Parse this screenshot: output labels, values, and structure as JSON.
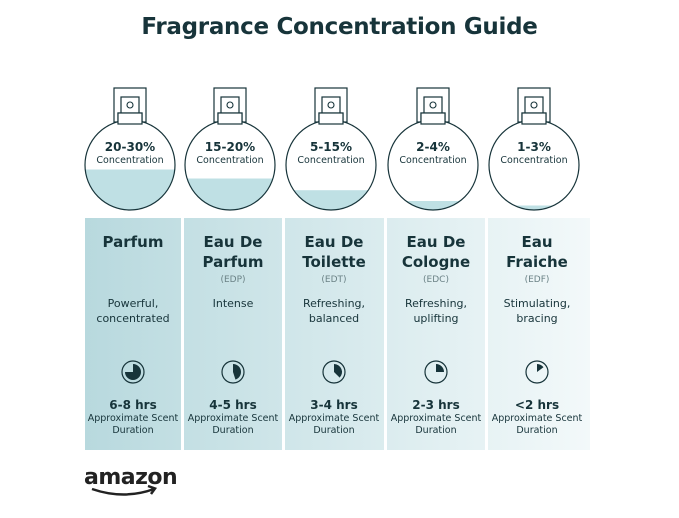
{
  "title": "Fragrance Concentration Guide",
  "colors": {
    "text": "#17343a",
    "liquid": "#bfe0e4",
    "panel_left": "#b8d9de",
    "panel_right": "#f3f9fa"
  },
  "concentration_label": "Concentration",
  "duration_label": "Approximate Scent Duration",
  "types": [
    {
      "concentration": "20-30%",
      "fill_level": 0.45,
      "name": [
        "Parfum"
      ],
      "abbr": "",
      "description": [
        "Powerful,",
        "concentrated"
      ],
      "duration": "6-8 hrs",
      "clock_fraction": 0.75
    },
    {
      "concentration": "15-20%",
      "fill_level": 0.35,
      "name": [
        "Eau De",
        "Parfum"
      ],
      "abbr": "(EDP)",
      "description": [
        "Intense"
      ],
      "duration": "4-5 hrs",
      "clock_fraction": 0.45
    },
    {
      "concentration": "5-15%",
      "fill_level": 0.22,
      "name": [
        "Eau De",
        "Toilette"
      ],
      "abbr": "(EDT)",
      "description": [
        "Refreshing,",
        "balanced"
      ],
      "duration": "3-4 hrs",
      "clock_fraction": 0.375
    },
    {
      "concentration": "2-4%",
      "fill_level": 0.1,
      "name": [
        "Eau De",
        "Cologne"
      ],
      "abbr": "(EDC)",
      "description": [
        "Refreshing,",
        "uplifting"
      ],
      "duration": "2-3 hrs",
      "clock_fraction": 0.25
    },
    {
      "concentration": "1-3%",
      "fill_level": 0.05,
      "name": [
        "Eau",
        "Fraiche"
      ],
      "abbr": "(EDF)",
      "description": [
        "Stimulating,",
        "bracing"
      ],
      "duration": "<2 hrs",
      "clock_fraction": 0.15
    }
  ],
  "logo": "amazon"
}
